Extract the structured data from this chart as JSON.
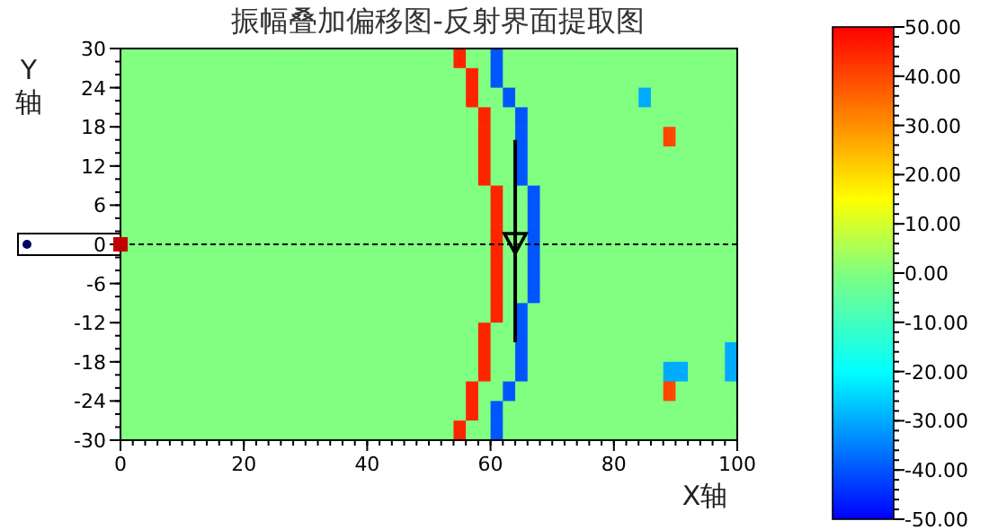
{
  "chart_data": {
    "type": "heatmap",
    "title": "振幅叠加偏移图-反射界面提取图",
    "xlabel": "X轴",
    "ylabel": "Y轴",
    "xlim": [
      0,
      100
    ],
    "xticks": [
      0,
      20,
      40,
      60,
      80,
      100
    ],
    "ylim": [
      -30,
      30
    ],
    "yticks": [
      -30,
      -24,
      -18,
      -12,
      -6,
      0,
      6,
      12,
      18,
      24,
      30
    ],
    "clim": [
      -50,
      50
    ],
    "cticks": [
      {
        "value": 50,
        "label": "50.00"
      },
      {
        "value": 40,
        "label": "40.00"
      },
      {
        "value": 30,
        "label": "30.00"
      },
      {
        "value": 20,
        "label": "20.00"
      },
      {
        "value": 10,
        "label": "10.00"
      },
      {
        "value": 0,
        "label": "0.00"
      },
      {
        "value": -10,
        "label": "-10.00"
      },
      {
        "value": -20,
        "label": "-20.00"
      },
      {
        "value": -30,
        "label": "-30.00"
      },
      {
        "value": -40,
        "label": "-40.00"
      },
      {
        "value": -50,
        "label": "-50.00"
      }
    ],
    "x": [
      1,
      3,
      5,
      7,
      9,
      11,
      13,
      15,
      17,
      19,
      21,
      23,
      25,
      27,
      29,
      31,
      33,
      35,
      37,
      39,
      41,
      43,
      45,
      47,
      49,
      51,
      53,
      55,
      57,
      59,
      61,
      63,
      65,
      67,
      69,
      71,
      73,
      75,
      77,
      79,
      81,
      83,
      85,
      87,
      89,
      91,
      93,
      95,
      97,
      99
    ],
    "y": [
      28.5,
      25.5,
      22.5,
      19.5,
      16.5,
      13.5,
      10.5,
      7.5,
      4.5,
      1.5,
      -1.5,
      -4.5,
      -7.5,
      -10.5,
      -13.5,
      -16.5,
      -19.5,
      -22.5,
      -25.5,
      -28.5
    ],
    "cells": [
      [
        0,
        0,
        0,
        0,
        0,
        0,
        0,
        0,
        0,
        0,
        0,
        0,
        0,
        0,
        0,
        0,
        0,
        0,
        0,
        0,
        0,
        0,
        0,
        0,
        0,
        0,
        0,
        45,
        0,
        0,
        -40,
        0,
        0,
        0,
        0,
        0,
        0,
        0,
        0,
        0,
        0,
        0,
        0,
        0,
        0,
        0,
        0,
        0,
        0,
        0
      ],
      [
        0,
        0,
        0,
        0,
        0,
        0,
        0,
        0,
        0,
        0,
        0,
        0,
        0,
        0,
        0,
        0,
        0,
        0,
        0,
        0,
        0,
        0,
        0,
        0,
        0,
        0,
        0,
        0,
        45,
        0,
        -40,
        0,
        0,
        0,
        0,
        0,
        0,
        0,
        0,
        0,
        0,
        0,
        0,
        0,
        0,
        0,
        0,
        0,
        0,
        0
      ],
      [
        0,
        0,
        0,
        0,
        0,
        0,
        0,
        0,
        0,
        0,
        0,
        0,
        0,
        0,
        0,
        0,
        0,
        0,
        0,
        0,
        0,
        0,
        0,
        0,
        0,
        0,
        0,
        0,
        45,
        0,
        0,
        -40,
        0,
        0,
        0,
        0,
        0,
        0,
        0,
        0,
        0,
        0,
        -30,
        0,
        0,
        0,
        0,
        0,
        0,
        0
      ],
      [
        0,
        0,
        0,
        0,
        0,
        0,
        0,
        0,
        0,
        0,
        0,
        0,
        0,
        0,
        0,
        0,
        0,
        0,
        0,
        0,
        0,
        0,
        0,
        0,
        0,
        0,
        0,
        0,
        0,
        45,
        0,
        0,
        -40,
        0,
        0,
        0,
        0,
        0,
        0,
        0,
        0,
        0,
        0,
        0,
        0,
        0,
        0,
        0,
        0,
        0
      ],
      [
        0,
        0,
        0,
        0,
        0,
        0,
        0,
        0,
        0,
        0,
        0,
        0,
        0,
        0,
        0,
        0,
        0,
        0,
        0,
        0,
        0,
        0,
        0,
        0,
        0,
        0,
        0,
        0,
        0,
        45,
        0,
        0,
        -40,
        0,
        0,
        0,
        0,
        0,
        0,
        0,
        0,
        0,
        0,
        0,
        40,
        0,
        0,
        0,
        0,
        0
      ],
      [
        0,
        0,
        0,
        0,
        0,
        0,
        0,
        0,
        0,
        0,
        0,
        0,
        0,
        0,
        0,
        0,
        0,
        0,
        0,
        0,
        0,
        0,
        0,
        0,
        0,
        0,
        0,
        0,
        0,
        45,
        0,
        0,
        -40,
        0,
        0,
        0,
        0,
        0,
        0,
        0,
        0,
        0,
        0,
        0,
        0,
        0,
        0,
        0,
        0,
        0
      ],
      [
        0,
        0,
        0,
        0,
        0,
        0,
        0,
        0,
        0,
        0,
        0,
        0,
        0,
        0,
        0,
        0,
        0,
        0,
        0,
        0,
        0,
        0,
        0,
        0,
        0,
        0,
        0,
        0,
        0,
        45,
        0,
        0,
        -40,
        0,
        0,
        0,
        0,
        0,
        0,
        0,
        0,
        0,
        0,
        0,
        0,
        0,
        0,
        0,
        0,
        0
      ],
      [
        0,
        0,
        0,
        0,
        0,
        0,
        0,
        0,
        0,
        0,
        0,
        0,
        0,
        0,
        0,
        0,
        0,
        0,
        0,
        0,
        0,
        0,
        0,
        0,
        0,
        0,
        0,
        0,
        0,
        0,
        45,
        0,
        0,
        -40,
        0,
        0,
        0,
        0,
        0,
        0,
        0,
        0,
        0,
        0,
        0,
        0,
        0,
        0,
        0,
        0
      ],
      [
        0,
        0,
        0,
        0,
        0,
        0,
        0,
        0,
        0,
        0,
        0,
        0,
        0,
        0,
        0,
        0,
        0,
        0,
        0,
        0,
        0,
        0,
        0,
        0,
        0,
        0,
        0,
        0,
        0,
        0,
        45,
        0,
        0,
        -40,
        0,
        0,
        0,
        0,
        0,
        0,
        0,
        0,
        0,
        0,
        0,
        0,
        0,
        0,
        0,
        0
      ],
      [
        0,
        0,
        0,
        0,
        0,
        0,
        0,
        0,
        0,
        0,
        0,
        0,
        0,
        0,
        0,
        0,
        0,
        0,
        0,
        0,
        0,
        0,
        0,
        0,
        0,
        0,
        0,
        0,
        0,
        0,
        45,
        0,
        0,
        -40,
        0,
        0,
        0,
        0,
        0,
        0,
        0,
        0,
        0,
        0,
        0,
        0,
        0,
        0,
        0,
        0
      ],
      [
        0,
        0,
        0,
        0,
        0,
        0,
        0,
        0,
        0,
        0,
        0,
        0,
        0,
        0,
        0,
        0,
        0,
        0,
        0,
        0,
        0,
        0,
        0,
        0,
        0,
        0,
        0,
        0,
        0,
        0,
        45,
        0,
        0,
        -40,
        0,
        0,
        0,
        0,
        0,
        0,
        0,
        0,
        0,
        0,
        0,
        0,
        0,
        0,
        0,
        0
      ],
      [
        0,
        0,
        0,
        0,
        0,
        0,
        0,
        0,
        0,
        0,
        0,
        0,
        0,
        0,
        0,
        0,
        0,
        0,
        0,
        0,
        0,
        0,
        0,
        0,
        0,
        0,
        0,
        0,
        0,
        0,
        45,
        0,
        0,
        -40,
        0,
        0,
        0,
        0,
        0,
        0,
        0,
        0,
        0,
        0,
        0,
        0,
        0,
        0,
        0,
        0
      ],
      [
        0,
        0,
        0,
        0,
        0,
        0,
        0,
        0,
        0,
        0,
        0,
        0,
        0,
        0,
        0,
        0,
        0,
        0,
        0,
        0,
        0,
        0,
        0,
        0,
        0,
        0,
        0,
        0,
        0,
        0,
        45,
        0,
        0,
        -40,
        0,
        0,
        0,
        0,
        0,
        0,
        0,
        0,
        0,
        0,
        0,
        0,
        0,
        0,
        0,
        0
      ],
      [
        0,
        0,
        0,
        0,
        0,
        0,
        0,
        0,
        0,
        0,
        0,
        0,
        0,
        0,
        0,
        0,
        0,
        0,
        0,
        0,
        0,
        0,
        0,
        0,
        0,
        0,
        0,
        0,
        0,
        0,
        45,
        0,
        -40,
        0,
        0,
        0,
        0,
        0,
        0,
        0,
        0,
        0,
        0,
        0,
        0,
        0,
        0,
        0,
        0,
        0
      ],
      [
        0,
        0,
        0,
        0,
        0,
        0,
        0,
        0,
        0,
        0,
        0,
        0,
        0,
        0,
        0,
        0,
        0,
        0,
        0,
        0,
        0,
        0,
        0,
        0,
        0,
        0,
        0,
        0,
        0,
        45,
        0,
        0,
        -40,
        0,
        0,
        0,
        0,
        0,
        0,
        0,
        0,
        0,
        0,
        0,
        0,
        0,
        0,
        0,
        0,
        0
      ],
      [
        0,
        0,
        0,
        0,
        0,
        0,
        0,
        0,
        0,
        0,
        0,
        0,
        0,
        0,
        0,
        0,
        0,
        0,
        0,
        0,
        0,
        0,
        0,
        0,
        0,
        0,
        0,
        0,
        0,
        45,
        0,
        0,
        -40,
        0,
        0,
        0,
        0,
        0,
        0,
        0,
        0,
        0,
        0,
        0,
        0,
        0,
        0,
        0,
        0,
        -30
      ],
      [
        0,
        0,
        0,
        0,
        0,
        0,
        0,
        0,
        0,
        0,
        0,
        0,
        0,
        0,
        0,
        0,
        0,
        0,
        0,
        0,
        0,
        0,
        0,
        0,
        0,
        0,
        0,
        0,
        0,
        45,
        0,
        0,
        -40,
        0,
        0,
        0,
        0,
        0,
        0,
        0,
        0,
        0,
        0,
        0,
        -30,
        -30,
        0,
        0,
        0,
        -30
      ],
      [
        0,
        0,
        0,
        0,
        0,
        0,
        0,
        0,
        0,
        0,
        0,
        0,
        0,
        0,
        0,
        0,
        0,
        0,
        0,
        0,
        0,
        0,
        0,
        0,
        0,
        0,
        0,
        0,
        45,
        0,
        0,
        -40,
        0,
        0,
        0,
        0,
        0,
        0,
        0,
        0,
        0,
        0,
        0,
        0,
        40,
        0,
        0,
        0,
        0,
        0
      ],
      [
        0,
        0,
        0,
        0,
        0,
        0,
        0,
        0,
        0,
        0,
        0,
        0,
        0,
        0,
        0,
        0,
        0,
        0,
        0,
        0,
        0,
        0,
        0,
        0,
        0,
        0,
        0,
        0,
        45,
        0,
        -40,
        0,
        0,
        0,
        0,
        0,
        0,
        0,
        0,
        0,
        0,
        0,
        0,
        0,
        0,
        0,
        0,
        0,
        0,
        0
      ],
      [
        0,
        0,
        0,
        0,
        0,
        0,
        0,
        0,
        0,
        0,
        0,
        0,
        0,
        0,
        0,
        0,
        0,
        0,
        0,
        0,
        0,
        0,
        0,
        0,
        0,
        0,
        0,
        45,
        0,
        0,
        -40,
        0,
        0,
        0,
        0,
        0,
        0,
        0,
        0,
        0,
        0,
        0,
        0,
        0,
        0,
        0,
        0,
        0,
        0,
        0
      ]
    ],
    "series": [
      {
        "type": "scatter",
        "x": [
          64
        ],
        "values": [
          0
        ],
        "errors": [
          [
            -15,
            16
          ]
        ],
        "marker": "triangle",
        "color": "#000000"
      }
    ],
    "ref_lines": [
      {
        "axis": "y",
        "value": 0,
        "color": "#000000",
        "line_style": "dashed"
      }
    ]
  }
}
